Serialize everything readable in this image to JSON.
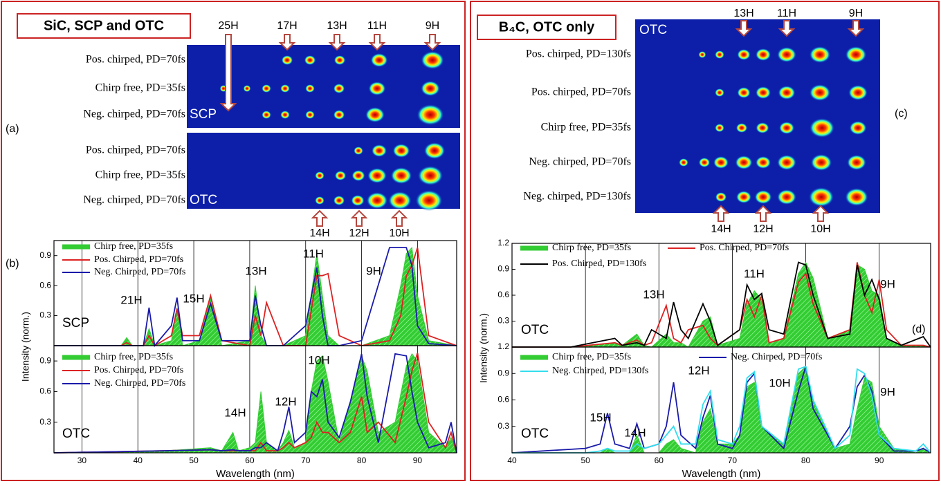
{
  "panel_left": {
    "title": "SiC, SCP and OTC",
    "label_a": "(a)",
    "label_b": "(b)",
    "image_scp": {
      "label": "SCP",
      "rows": [
        "Pos. chirped, PD=70fs",
        "Chirp free, PD=35fs",
        "Neg. chirped, PD=70fs"
      ]
    },
    "image_otc": {
      "label": "OTC",
      "rows": [
        "Pos. chirped, PD=70fs",
        "Chirp free, PD=35fs",
        "Neg. chirped, PD=70fs"
      ]
    },
    "top_harmonics": [
      "25H",
      "17H",
      "13H",
      "11H",
      "9H"
    ],
    "bottom_harmonics": [
      "14H",
      "12H",
      "10H"
    ]
  },
  "panel_right": {
    "title": "B₄C, OTC only",
    "label_c": "(c)",
    "label_d": "(d)",
    "image_otc": {
      "label": "OTC",
      "rows": [
        "Pos. chirped, PD=130fs",
        "Pos. chirped, PD=70fs",
        "Chirp free, PD=35fs",
        "Neg. chirped, PD=70fs",
        "Neg. chirped, PD=130fs"
      ]
    },
    "top_harmonics": [
      "13H",
      "11H",
      "9H"
    ],
    "bottom_harmonics": [
      "14H",
      "12H",
      "10H"
    ]
  },
  "chart_data": [
    {
      "type": "line",
      "label": "SCP",
      "xlim": [
        25,
        97
      ],
      "ylim": [
        0,
        1.05
      ],
      "xticks": [
        30,
        40,
        50,
        60,
        70,
        80,
        90
      ],
      "yticks": [
        0.3,
        0.6,
        0.9
      ],
      "xgrid": true,
      "annotations": [
        "21H",
        "15H",
        "13H",
        "11H",
        "9H"
      ],
      "x": [
        25,
        37,
        38,
        39,
        41,
        42,
        43,
        46,
        47,
        48,
        51,
        53,
        55,
        60,
        61,
        62,
        63,
        66,
        70,
        72,
        73,
        74,
        76,
        80,
        85,
        87,
        88,
        89,
        90,
        92,
        97
      ],
      "series": [
        {
          "name": "Chirp free, PD=35fs",
          "color": "#33cc33",
          "fill": true,
          "values": [
            0,
            0,
            0.08,
            0,
            0,
            0.17,
            0,
            0.05,
            0.38,
            0,
            0.05,
            0.48,
            0,
            0.05,
            0.6,
            0.1,
            0,
            0,
            0.1,
            0.92,
            0.5,
            0.1,
            0,
            0,
            0.1,
            0.6,
            0.92,
            0.98,
            0.5,
            0.05,
            0
          ]
        },
        {
          "name": "Pos. Chirped, PD=70fs",
          "color": "#dd2222",
          "values": [
            0,
            0,
            0.03,
            0,
            0,
            0.1,
            0,
            0.1,
            0.37,
            0.1,
            0.1,
            0.5,
            0.05,
            0,
            0.3,
            0.1,
            0.43,
            0,
            0,
            0.7,
            0.7,
            0.72,
            0.1,
            0,
            0.05,
            0.3,
            0.7,
            0.8,
            0.98,
            0.1,
            0
          ]
        },
        {
          "name": "Neg. Chirped, PD=70fs",
          "color": "#1a1aaa",
          "values": [
            0,
            0,
            0,
            0,
            0,
            0.38,
            0,
            0.2,
            0.48,
            0.05,
            0.05,
            0.42,
            0.05,
            0.05,
            0.5,
            0.2,
            0,
            0,
            0.2,
            0.78,
            0.3,
            0,
            0,
            0.05,
            0.98,
            0.98,
            0.98,
            0.8,
            0.2,
            0.02,
            0
          ]
        }
      ]
    },
    {
      "type": "line",
      "label": "OTC",
      "xlim": [
        25,
        97
      ],
      "ylim": [
        0,
        1.05
      ],
      "xticks": [
        30,
        40,
        50,
        60,
        70,
        80,
        90
      ],
      "yticks": [
        0.3,
        0.6,
        0.9
      ],
      "xgrid": true,
      "xlabel": "Wavelength (nm)",
      "ylabel": "Intensity (norm.)",
      "annotations": [
        "10H",
        "14H",
        "12H"
      ],
      "x": [
        25,
        45,
        53,
        55,
        57,
        58,
        60,
        61,
        62,
        63,
        65,
        66,
        67,
        68,
        70,
        71,
        72,
        73,
        74,
        76,
        78,
        80,
        81,
        83,
        86,
        88,
        89,
        90,
        92,
        95,
        96,
        97
      ],
      "series": [
        {
          "name": "Chirp free, PD=35fs",
          "color": "#33cc33",
          "fill": true,
          "values": [
            0,
            0.02,
            0.05,
            0.02,
            0.2,
            0.02,
            0.05,
            0.1,
            0.6,
            0.1,
            0.02,
            0.1,
            0.22,
            0.05,
            0.1,
            0.6,
            0.9,
            0.95,
            0.7,
            0.1,
            0.5,
            0.95,
            0.8,
            0.2,
            0.3,
            0.85,
            0.97,
            0.9,
            0.2,
            0.05,
            0.15,
            0
          ]
        },
        {
          "name": "Pos. Chirped, PD=70fs",
          "color": "#dd2222",
          "values": [
            0,
            0.02,
            0.03,
            0.02,
            0.02,
            0.02,
            0.02,
            0.02,
            0.1,
            0.02,
            0.02,
            0.05,
            0.1,
            0.05,
            0.1,
            0.15,
            0.3,
            0.2,
            0.2,
            0.1,
            0.2,
            0.55,
            0.2,
            0.3,
            0.1,
            0.55,
            0.8,
            0.98,
            0.3,
            0.05,
            0.2,
            0
          ]
        },
        {
          "name": "Neg. Chirped, PD=70fs",
          "color": "#1a1aaa",
          "values": [
            0,
            0.02,
            0.03,
            0.02,
            0.03,
            0.02,
            0.02,
            0.05,
            0.05,
            0.1,
            0.02,
            0.2,
            0.45,
            0.1,
            0.2,
            0.6,
            0.55,
            0.72,
            0.3,
            0.15,
            0.5,
            0.97,
            0.55,
            0.1,
            0.97,
            0.95,
            0.6,
            0.3,
            0.05,
            0.1,
            0.3,
            0
          ]
        }
      ]
    },
    {
      "type": "line",
      "label": "OTC",
      "xlim": [
        40,
        97
      ],
      "ylim": [
        0,
        1.2
      ],
      "xticks": [
        40,
        50,
        60,
        70,
        80,
        90
      ],
      "yticks": [
        0.3,
        0.6,
        0.9,
        1.2
      ],
      "xgrid": true,
      "annotations": [
        "13H",
        "11H",
        "9H"
      ],
      "x": [
        40,
        48,
        54,
        55,
        57,
        58,
        59,
        61,
        62,
        63,
        64,
        66,
        67,
        68,
        71,
        72,
        73,
        74,
        75,
        77,
        79,
        80,
        81,
        83,
        86,
        87,
        88,
        89,
        90,
        91,
        93,
        96,
        97
      ],
      "series": [
        {
          "name": "Chirp free, PD=35fs",
          "color": "#33cc33",
          "fill": true,
          "values": [
            0,
            0,
            0.05,
            0.02,
            0.15,
            0.02,
            0,
            0.15,
            0.05,
            0.05,
            0,
            0.3,
            0.35,
            0.02,
            0.1,
            0.5,
            0.65,
            0.55,
            0.05,
            0.1,
            0.85,
            0.98,
            0.8,
            0.1,
            0.2,
            0.95,
            0.9,
            0.65,
            0.6,
            0.1,
            0.02,
            0.02,
            0
          ]
        },
        {
          "name": "Pos. Chirped, PD=70fs",
          "color": "#dd2222",
          "values": [
            0,
            0,
            0.05,
            0.02,
            0.08,
            0.02,
            0.05,
            0.48,
            0.1,
            0.05,
            0.2,
            0.25,
            0.1,
            0.02,
            0.2,
            0.55,
            0.35,
            0.6,
            0.05,
            0.1,
            0.75,
            0.85,
            0.5,
            0.1,
            0.2,
            0.98,
            0.6,
            0.4,
            0.78,
            0.2,
            0.02,
            0.02,
            0
          ]
        },
        {
          "name": "Pos. Chirped, PD=130fs",
          "color": "#000000",
          "values": [
            0,
            0,
            0.1,
            0.02,
            0.05,
            0.02,
            0.2,
            0.1,
            0.52,
            0.2,
            0.1,
            0.5,
            0.3,
            0.02,
            0.2,
            0.72,
            0.55,
            0.62,
            0.2,
            0.15,
            0.98,
            0.95,
            0.6,
            0.1,
            0.15,
            0.95,
            0.6,
            0.78,
            0.55,
            0.1,
            0.02,
            0.12,
            0
          ]
        }
      ]
    },
    {
      "type": "line",
      "label": "OTC",
      "xlim": [
        40,
        97
      ],
      "ylim": [
        0,
        1.2
      ],
      "xticks": [
        40,
        50,
        60,
        70,
        80,
        90
      ],
      "yticks": [
        0.3,
        0.6,
        0.9,
        1.2
      ],
      "xgrid": true,
      "xlabel": "Wavelength (nm)",
      "ylabel": "Intensity (norm.)",
      "annotations": [
        "12H",
        "10H",
        "15H",
        "14H",
        "9H"
      ],
      "x": [
        40,
        50,
        52,
        53,
        54,
        56,
        57,
        58,
        60,
        61,
        62,
        63,
        65,
        66,
        67,
        68,
        70,
        71,
        72,
        73,
        74,
        77,
        79,
        80,
        81,
        84,
        86,
        87,
        88,
        89,
        90,
        92,
        95,
        96,
        97
      ],
      "series": [
        {
          "name": "Chirp free, PD=35fs",
          "color": "#33cc33",
          "fill": true,
          "values": [
            0,
            0,
            0,
            0.05,
            0,
            0,
            0.2,
            0,
            0,
            0.1,
            0.15,
            0.05,
            0,
            0.35,
            0.5,
            0.1,
            0.1,
            0.2,
            0.75,
            0.8,
            0.3,
            0.1,
            0.9,
            0.98,
            0.6,
            0.05,
            0.1,
            0.5,
            0.85,
            0.8,
            0.3,
            0.05,
            0,
            0.05,
            0
          ]
        },
        {
          "name": "Neg. Chirped, PD=70fs",
          "color": "#1a1aaa",
          "values": [
            0,
            0.05,
            0.1,
            0.45,
            0.1,
            0.05,
            0.33,
            0.05,
            0.1,
            0.3,
            0.8,
            0.2,
            0.05,
            0.4,
            0.65,
            0.1,
            0.05,
            0.2,
            0.8,
            0.9,
            0.3,
            0.05,
            0.7,
            0.98,
            0.5,
            0.05,
            0.3,
            0.75,
            0.88,
            0.7,
            0.2,
            0.02,
            0.02,
            0.05,
            0
          ]
        },
        {
          "name": "Neg. Chirped, PD=130fs",
          "color": "#33ddee",
          "values": [
            0,
            0,
            0.02,
            0.05,
            0.02,
            0.02,
            0.1,
            0.05,
            0.1,
            0.2,
            0.3,
            0.1,
            0.1,
            0.55,
            0.7,
            0.15,
            0.1,
            0.3,
            0.85,
            0.92,
            0.3,
            0.1,
            0.95,
            0.98,
            0.6,
            0.05,
            0.2,
            0.95,
            0.9,
            0.65,
            0.2,
            0.05,
            0.02,
            0.1,
            0
          ]
        }
      ]
    }
  ]
}
